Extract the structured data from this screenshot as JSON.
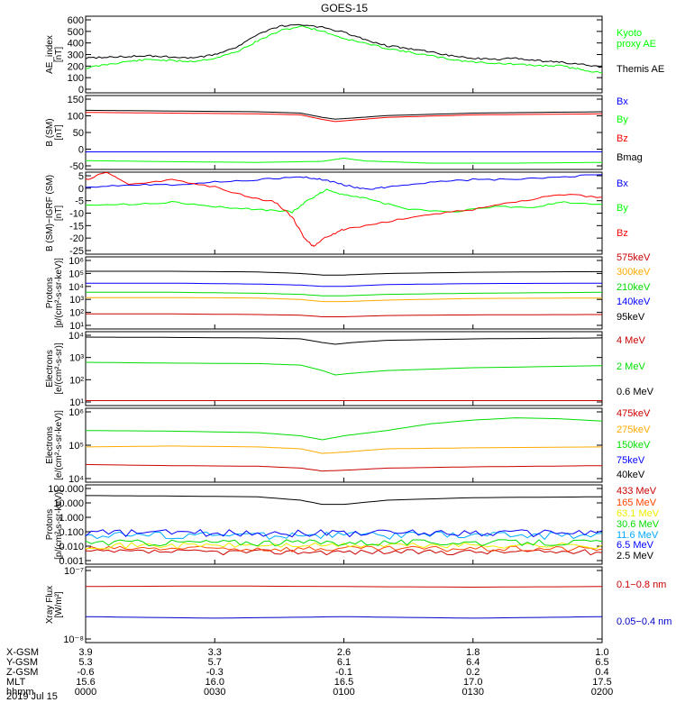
{
  "title": "GOES-15",
  "chart_data": [
    {
      "type": "line",
      "ylabel": "AE_index\n[nT]",
      "yticks": [
        "600",
        "500",
        "400",
        "300",
        "200",
        "100",
        "0"
      ],
      "ylim": [
        0,
        620
      ],
      "scale": "linear",
      "series": [
        {
          "name": "Kyoto\nproxy AE",
          "color": "#00ff00",
          "x": [
            0,
            5,
            10,
            15,
            20,
            25,
            30,
            35,
            40,
            45,
            50,
            55,
            60,
            65,
            70,
            75,
            80,
            85,
            90,
            95,
            100,
            105,
            110,
            115,
            120
          ],
          "values": [
            200,
            230,
            255,
            270,
            260,
            255,
            280,
            330,
            420,
            500,
            540,
            500,
            440,
            400,
            360,
            330,
            300,
            270,
            250,
            240,
            230,
            220,
            220,
            190,
            160
          ]
        },
        {
          "name": "Themis AE",
          "color": "#000000",
          "x": [
            0,
            5,
            10,
            15,
            20,
            25,
            30,
            35,
            40,
            45,
            50,
            55,
            60,
            65,
            70,
            75,
            80,
            85,
            90,
            95,
            100,
            105,
            110,
            115,
            120
          ],
          "values": [
            280,
            290,
            295,
            300,
            290,
            280,
            310,
            370,
            470,
            540,
            550,
            530,
            490,
            430,
            380,
            360,
            330,
            300,
            280,
            270,
            280,
            260,
            250,
            230,
            210
          ]
        }
      ]
    },
    {
      "type": "line",
      "ylabel": "B (SM)\n[nT]",
      "yticks": [
        "150",
        "100",
        "50",
        "0",
        "-50"
      ],
      "ylim": [
        -60,
        150
      ],
      "scale": "linear",
      "series": [
        {
          "name": "Bx",
          "color": "#0000ff",
          "x": [
            0,
            30,
            60,
            90,
            120
          ],
          "values": [
            -10,
            -10,
            -10,
            -10,
            -10
          ]
        },
        {
          "name": "By",
          "color": "#00ff00",
          "x": [
            0,
            20,
            40,
            55,
            60,
            65,
            80,
            100,
            120
          ],
          "values": [
            -35,
            -38,
            -40,
            -37,
            -28,
            -36,
            -42,
            -42,
            -40
          ]
        },
        {
          "name": "Bz",
          "color": "#ff0000",
          "x": [
            0,
            20,
            40,
            50,
            55,
            58,
            62,
            70,
            90,
            120
          ],
          "values": [
            102,
            100,
            98,
            95,
            82,
            76,
            80,
            88,
            95,
            98
          ]
        },
        {
          "name": "Bmag",
          "color": "#000000",
          "x": [
            0,
            20,
            40,
            50,
            55,
            58,
            62,
            70,
            90,
            120
          ],
          "values": [
            108,
            106,
            104,
            100,
            88,
            83,
            86,
            93,
            100,
            104
          ]
        }
      ]
    },
    {
      "type": "line",
      "ylabel": "B (SM)−IGRF (SM)\n[nT]",
      "yticks": [
        "5",
        "0",
        "-5",
        "-10",
        "-15",
        "-20",
        "-25"
      ],
      "ylim": [
        -27,
        6
      ],
      "scale": "linear",
      "series": [
        {
          "name": "Bx",
          "color": "#0000ff",
          "x": [
            0,
            10,
            20,
            30,
            40,
            50,
            55,
            60,
            65,
            70,
            80,
            90,
            100,
            110,
            120
          ],
          "values": [
            0,
            1,
            1,
            2,
            3,
            4,
            3,
            1,
            -1,
            0,
            2,
            3,
            3,
            4,
            5
          ]
        },
        {
          "name": "By",
          "color": "#00ff00",
          "x": [
            0,
            10,
            20,
            30,
            40,
            48,
            52,
            56,
            60,
            66,
            75,
            85,
            95,
            105,
            110,
            120
          ],
          "values": [
            -7,
            -7,
            -6,
            -8,
            -9,
            -10,
            -5,
            -1,
            -3,
            -5,
            -9,
            -10,
            -8,
            -8,
            -6,
            -7
          ]
        },
        {
          "name": "Bz",
          "color": "#ff0000",
          "x": [
            0,
            5,
            10,
            20,
            30,
            38,
            44,
            48,
            51,
            53,
            56,
            60,
            70,
            80,
            90,
            100,
            110,
            120
          ],
          "values": [
            3,
            6,
            1,
            3,
            0,
            -4,
            -6,
            -12,
            -21,
            -24,
            -20,
            -17,
            -14,
            -11,
            -9,
            -6,
            -3,
            -4
          ]
        }
      ]
    },
    {
      "type": "line",
      "ylabel": "Protons\n[p/(cm²-s-sr-keV)]",
      "yticks": [
        "10⁶",
        "10⁵",
        "10⁴",
        "10³",
        "10²",
        "10¹"
      ],
      "ylim": [
        10,
        1000000
      ],
      "scale": "log",
      "series": [
        {
          "name": "575keV",
          "color": "#cc0000",
          "x": [
            0,
            20,
            40,
            50,
            55,
            60,
            70,
            90,
            120
          ],
          "values": [
            110,
            110,
            100,
            90,
            70,
            70,
            85,
            95,
            100
          ]
        },
        {
          "name": "300keV",
          "color": "#ffaa00",
          "x": [
            0,
            20,
            40,
            50,
            55,
            60,
            70,
            90,
            120
          ],
          "values": [
            1500,
            1500,
            1400,
            1100,
            800,
            800,
            1000,
            1300,
            1400
          ]
        },
        {
          "name": "210keV",
          "color": "#00dd00",
          "x": [
            0,
            20,
            40,
            50,
            55,
            60,
            70,
            90,
            120
          ],
          "values": [
            3500,
            3500,
            3000,
            2500,
            2000,
            2000,
            2500,
            3000,
            3500
          ]
        },
        {
          "name": "140keV",
          "color": "#0000ff",
          "x": [
            0,
            20,
            40,
            50,
            55,
            60,
            70,
            90,
            120
          ],
          "values": [
            15000,
            15000,
            13000,
            11000,
            9000,
            9000,
            12000,
            14000,
            15000
          ]
        },
        {
          "name": "95keV",
          "color": "#000000",
          "x": [
            0,
            20,
            40,
            50,
            55,
            60,
            70,
            90,
            120
          ],
          "values": [
            100000,
            100000,
            90000,
            70000,
            55000,
            55000,
            70000,
            85000,
            95000
          ]
        }
      ]
    },
    {
      "type": "line",
      "ylabel": "Electrons\n[e/(cm²-s-sr)]",
      "yticks": [
        "10⁴",
        "10³",
        "10²",
        "10¹"
      ],
      "ylim": [
        8,
        100000
      ],
      "scale": "log",
      "series": [
        {
          "name": "4 MeV",
          "color": "#cc0000",
          "x": [
            0,
            20,
            40,
            60,
            80,
            100,
            120
          ],
          "values": [
            15,
            15,
            15,
            15,
            15,
            15,
            15
          ]
        },
        {
          "name": "2 MeV",
          "color": "#00dd00",
          "x": [
            0,
            20,
            40,
            50,
            55,
            58,
            62,
            70,
            90,
            120
          ],
          "values": [
            2000,
            1800,
            1700,
            1400,
            700,
            400,
            500,
            700,
            1000,
            1300
          ]
        },
        {
          "name": "0.6 MeV",
          "color": "#000000",
          "x": [
            0,
            20,
            40,
            50,
            55,
            58,
            62,
            70,
            90,
            120
          ],
          "values": [
            50000,
            48000,
            45000,
            40000,
            25000,
            20000,
            25000,
            33000,
            40000,
            45000
          ]
        }
      ]
    },
    {
      "type": "line",
      "ylabel": "Electrons\n[e/(cm²-s-sr-keV)]",
      "yticks": [
        "10⁶",
        "10⁵",
        "10⁴"
      ],
      "ylim": [
        10000,
        1000000
      ],
      "scale": "log",
      "series": [
        {
          "name": "475keV",
          "color": "#cc0000",
          "x": [
            0,
            20,
            40,
            50,
            55,
            60,
            70,
            90,
            120
          ],
          "values": [
            30000,
            28000,
            27000,
            24000,
            20000,
            21000,
            24000,
            26000,
            28000
          ]
        },
        {
          "name": "275keV",
          "color": "#ffaa00",
          "x": [
            0,
            20,
            40,
            50,
            55,
            60,
            70,
            90,
            120
          ],
          "values": [
            90000,
            95000,
            90000,
            80000,
            60000,
            65000,
            80000,
            85000,
            90000
          ]
        },
        {
          "name": "150keV",
          "color": "#00dd00",
          "x": [
            0,
            20,
            40,
            50,
            55,
            60,
            70,
            80,
            90,
            100,
            110,
            120
          ],
          "values": [
            250000,
            240000,
            220000,
            180000,
            140000,
            180000,
            250000,
            380000,
            480000,
            550000,
            520000,
            450000
          ]
        },
        {
          "name": "75keV",
          "color": "#0000ff",
          "x": [
            0,
            120
          ],
          "values": [
            0,
            0
          ]
        },
        {
          "name": "40keV",
          "color": "#000000",
          "x": [
            0,
            120
          ],
          "values": [
            0,
            0
          ]
        }
      ]
    },
    {
      "type": "line",
      "ylabel": "Protons\n[p/(cm²-s-sr-keV)]",
      "yticks": [
        "100.000",
        "10.000",
        "1.000",
        "0.100",
        "0.010",
        "0.001"
      ],
      "ylim": [
        0.001,
        150
      ],
      "scale": "log",
      "series": [
        {
          "name": "433 MeV",
          "color": "#cc0000",
          "noise": [
            0.004,
            0.009
          ]
        },
        {
          "name": "165 MeV",
          "color": "#ff4400",
          "noise": [
            0.006,
            0.015
          ]
        },
        {
          "name": "63.1 MeV",
          "color": "#eeee00",
          "noise": [
            0.01,
            0.025
          ]
        },
        {
          "name": "30.6 MeV",
          "color": "#00dd00",
          "noise": [
            0.015,
            0.04
          ]
        },
        {
          "name": "11.6 MeV",
          "color": "#00aaff",
          "noise": [
            0.04,
            0.13
          ]
        },
        {
          "name": "6.5 MeV",
          "color": "#0000ff",
          "noise": [
            0.06,
            0.18
          ]
        },
        {
          "name": "2.5 MeV",
          "color": "#000000",
          "x": [
            0,
            20,
            40,
            50,
            55,
            60,
            70,
            90,
            120
          ],
          "values": [
            30,
            28,
            25,
            15,
            8,
            8,
            15,
            22,
            25
          ]
        }
      ]
    },
    {
      "type": "line",
      "ylabel": "Xray Flux\n[W/m²]",
      "yticks": [
        "10⁻⁷",
        "10⁻⁸"
      ],
      "ylim": [
        1e-08,
        1e-07
      ],
      "scale": "log",
      "series": [
        {
          "name": "0.1−0.8 nm",
          "color": "#cc0000",
          "x": [
            0,
            30,
            60,
            90,
            120
          ],
          "values": [
            5.5e-08,
            5.6e-08,
            5.5e-08,
            5.4e-08,
            5.5e-08
          ]
        },
        {
          "name": "0.05−0.4 nm",
          "color": "#0000cc",
          "x": [
            0,
            30,
            60,
            90,
            120
          ],
          "values": [
            2.2e-08,
            2.1e-08,
            2.2e-08,
            2.1e-08,
            2.2e-08
          ]
        }
      ]
    }
  ],
  "x_axis": {
    "rows": [
      {
        "label": "X-GSM",
        "values": [
          "3.9",
          "3.3",
          "2.6",
          "1.8",
          "1.0"
        ]
      },
      {
        "label": "Y-GSM",
        "values": [
          "5.3",
          "5.7",
          "6.1",
          "6.4",
          "6.5"
        ]
      },
      {
        "label": "Z-GSM",
        "values": [
          "-0.6",
          "-0.3",
          "-0.1",
          "0.2",
          "0.4"
        ]
      },
      {
        "label": "MLT",
        "values": [
          "15.6",
          "16.0",
          "16.5",
          "17.0",
          "17.5"
        ]
      },
      {
        "label": "hhmm",
        "values": [
          "0000",
          "0030",
          "0100",
          "0130",
          "0200"
        ]
      }
    ],
    "date": "2019 Jul 15",
    "xlim": [
      0,
      120
    ],
    "ticks_minutes": [
      0,
      30,
      60,
      90,
      120
    ]
  }
}
